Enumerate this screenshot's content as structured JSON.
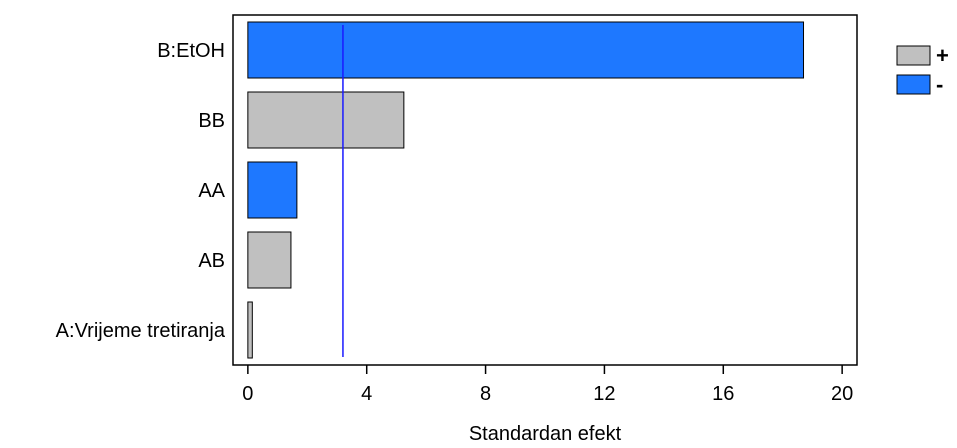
{
  "chart_data": {
    "type": "bar",
    "orientation": "horizontal",
    "categories": [
      "B:EtOH",
      "BB",
      "AA",
      "AB",
      "A:Vrijeme tretiranja"
    ],
    "values": [
      18.7,
      5.25,
      1.65,
      1.45,
      0.15
    ],
    "signs": [
      "-",
      "+",
      "-",
      "+",
      "+"
    ],
    "xlabel": "Standardan efekt",
    "ylabel": "",
    "xlim": [
      -0.5,
      20.5
    ],
    "xticks": [
      0,
      4,
      8,
      12,
      16,
      20
    ],
    "reference_line": 3.2,
    "reference_line_color": "#1a1aff",
    "grid": false,
    "legend": {
      "position": "top-right",
      "entries": [
        {
          "label": "+",
          "color": "#c0c0c0"
        },
        {
          "label": "-",
          "color": "#1e78ff"
        }
      ]
    }
  }
}
